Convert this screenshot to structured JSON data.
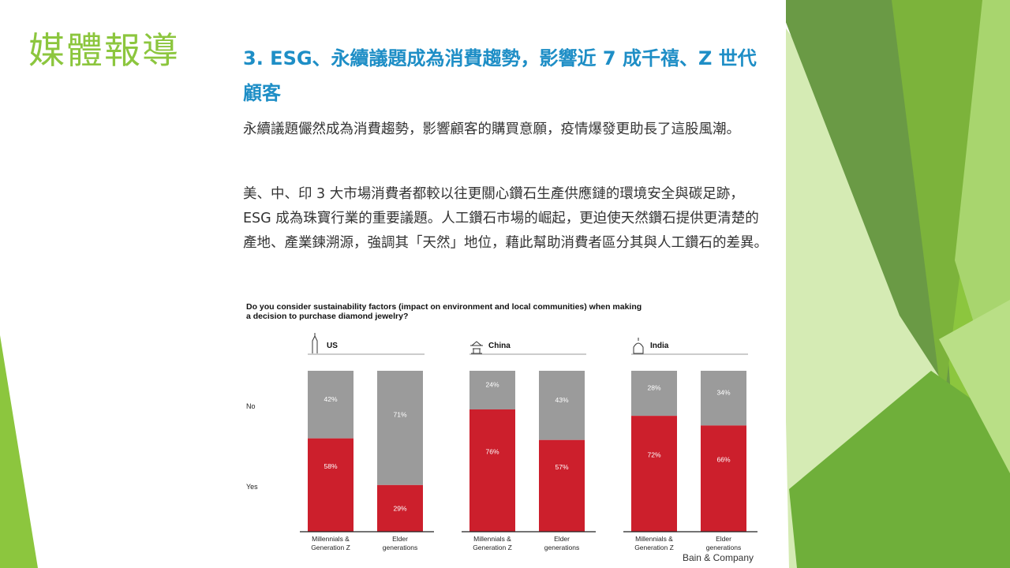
{
  "slide": {
    "title": "媒體報導"
  },
  "article": {
    "heading": "3. ESG、永續議題成為消費趨勢，影響近 7 成千禧、Z 世代顧客",
    "paragraphs": [
      "永續議題儼然成為消費趨勢，影響顧客的購買意願，疫情爆發更助長了這股風潮。",
      "美、中、印 3 大市場消費者都較以往更關心鑽石生產供應鏈的環境安全與碳足跡，ESG 成為珠寶行業的重要議題。人工鑽石市場的崛起，更迫使天然鑽石提供更清楚的產地、產業鍊溯源，強調其「天然」地位，藉此幫助消費者區分其與人工鑽石的差異。"
    ]
  },
  "chart_data": {
    "type": "bar",
    "stacked": true,
    "title_lines": [
      "Do you consider sustainability factors (impact on environment and local communities) when making",
      "a decision to purchase diamond jewelry?"
    ],
    "row_labels": [
      "No",
      "Yes"
    ],
    "source": "Bain & Company",
    "ylim": [
      0,
      100
    ],
    "colors": {
      "yes": "#cc1f2c",
      "no": "#9b9b9b",
      "value_label": "#ffffff"
    },
    "panels": [
      {
        "name": "US",
        "icon": "skyscraper-icon",
        "categories": [
          "Millennials & Generation Z",
          "Elder generations"
        ],
        "series": [
          {
            "name": "Yes",
            "values": [
              58,
              29
            ]
          },
          {
            "name": "No",
            "values": [
              42,
              71
            ]
          }
        ]
      },
      {
        "name": "China",
        "icon": "temple-icon",
        "categories": [
          "Millennials & Generation Z",
          "Elder generations"
        ],
        "series": [
          {
            "name": "Yes",
            "values": [
              76,
              57
            ]
          },
          {
            "name": "No",
            "values": [
              24,
              43
            ]
          }
        ]
      },
      {
        "name": "India",
        "icon": "taj-mahal-icon",
        "categories": [
          "Millennials & Generation Z",
          "Elder generations"
        ],
        "series": [
          {
            "name": "Yes",
            "values": [
              72,
              66
            ]
          },
          {
            "name": "No",
            "values": [
              28,
              34
            ]
          }
        ]
      }
    ]
  }
}
